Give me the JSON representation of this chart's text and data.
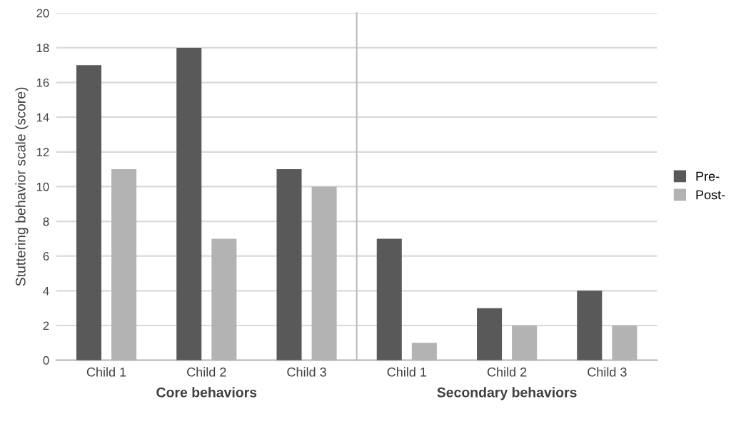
{
  "chart_data": [
    {
      "type": "bar",
      "xlabel": "Core behaviors",
      "ylabel": "Stuttering behavior scale (score)",
      "categories": [
        "Child 1",
        "Child 2",
        "Child 3"
      ],
      "series": [
        {
          "color": "#595959",
          "values": [
            17,
            18,
            11
          ]
        },
        {
          "color": "#b3b3b3",
          "values": [
            11,
            7,
            10
          ]
        }
      ],
      "ylim": [
        0,
        20
      ],
      "yticks": [
        0,
        2,
        4,
        6,
        8,
        10,
        12,
        14,
        16,
        18,
        20
      ],
      "grid": "y",
      "legend": false
    },
    {
      "type": "bar",
      "xlabel": "Secondary behaviors",
      "categories": [
        "Child 1",
        "Child 2",
        "Child 3"
      ],
      "series": [
        {
          "name": "Pre-",
          "color": "#595959",
          "values": [
            7,
            3,
            4
          ]
        },
        {
          "name": "Post-",
          "color": "#b3b3b3",
          "values": [
            1,
            2,
            2
          ]
        }
      ],
      "ylim": [
        0,
        20
      ],
      "yticks": [
        0,
        2,
        4,
        6,
        8,
        10,
        12,
        14,
        16,
        18,
        20
      ],
      "grid": "y",
      "legend": "right",
      "tick_labels": "x"
    }
  ]
}
